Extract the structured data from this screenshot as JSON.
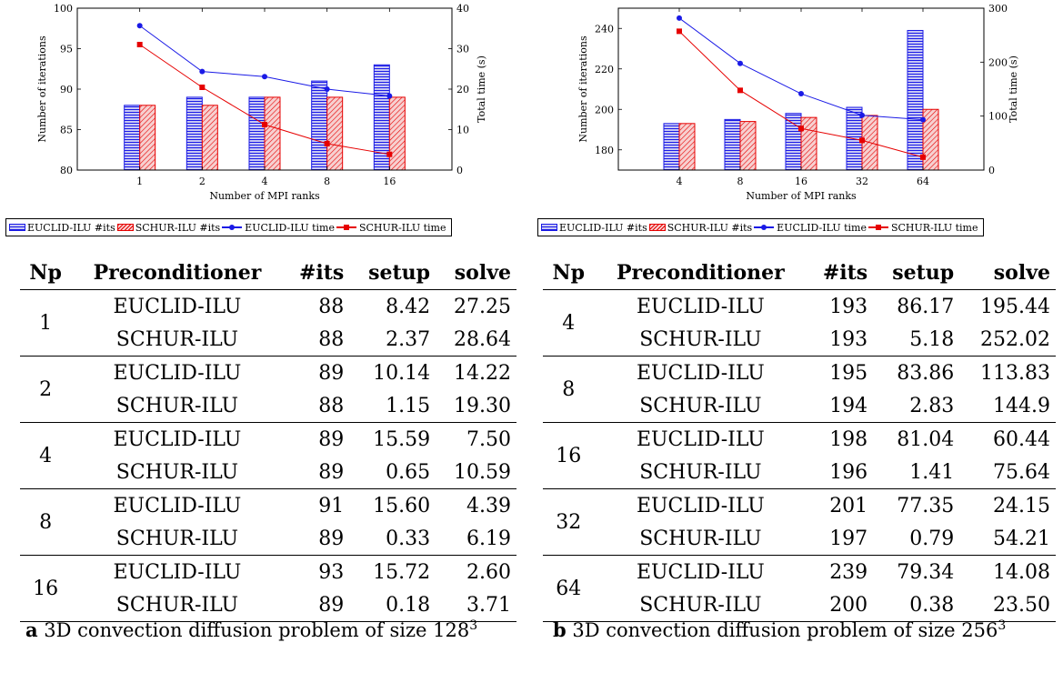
{
  "panels": [
    {
      "id": "a",
      "legend": [
        "EUCLID-ILU #its",
        "SCHUR-ILU #its",
        "EUCLID-ILU time",
        "SCHUR-ILU time"
      ],
      "caption": {
        "label": "a",
        "text": "3D convection diffusion problem of size 128",
        "exponent": "3"
      },
      "table": {
        "headers": [
          "Np",
          "Preconditioner",
          "#its",
          "setup",
          "solve"
        ],
        "groups": [
          {
            "np": "1",
            "rows": [
              [
                "EUCLID-ILU",
                "88",
                "8.42",
                "27.25"
              ],
              [
                "SCHUR-ILU",
                "88",
                "2.37",
                "28.64"
              ]
            ]
          },
          {
            "np": "2",
            "rows": [
              [
                "EUCLID-ILU",
                "89",
                "10.14",
                "14.22"
              ],
              [
                "SCHUR-ILU",
                "88",
                "1.15",
                "19.30"
              ]
            ]
          },
          {
            "np": "4",
            "rows": [
              [
                "EUCLID-ILU",
                "89",
                "15.59",
                "7.50"
              ],
              [
                "SCHUR-ILU",
                "89",
                "0.65",
                "10.59"
              ]
            ]
          },
          {
            "np": "8",
            "rows": [
              [
                "EUCLID-ILU",
                "91",
                "15.60",
                "4.39"
              ],
              [
                "SCHUR-ILU",
                "89",
                "0.33",
                "6.19"
              ]
            ]
          },
          {
            "np": "16",
            "rows": [
              [
                "EUCLID-ILU",
                "93",
                "15.72",
                "2.60"
              ],
              [
                "SCHUR-ILU",
                "89",
                "0.18",
                "3.71"
              ]
            ]
          }
        ]
      }
    },
    {
      "id": "b",
      "legend": [
        "EUCLID-ILU #its",
        "SCHUR-ILU #its",
        "EUCLID-ILU time",
        "SCHUR-ILU time"
      ],
      "caption": {
        "label": "b",
        "text": "3D convection diffusion problem of size 256",
        "exponent": "3"
      },
      "table": {
        "headers": [
          "Np",
          "Preconditioner",
          "#its",
          "setup",
          "solve"
        ],
        "groups": [
          {
            "np": "4",
            "rows": [
              [
                "EUCLID-ILU",
                "193",
                "86.17",
                "195.44"
              ],
              [
                "SCHUR-ILU",
                "193",
                "5.18",
                "252.02"
              ]
            ]
          },
          {
            "np": "8",
            "rows": [
              [
                "EUCLID-ILU",
                "195",
                "83.86",
                "113.83"
              ],
              [
                "SCHUR-ILU",
                "194",
                "2.83",
                "144.9"
              ]
            ]
          },
          {
            "np": "16",
            "rows": [
              [
                "EUCLID-ILU",
                "198",
                "81.04",
                "60.44"
              ],
              [
                "SCHUR-ILU",
                "196",
                "1.41",
                "75.64"
              ]
            ]
          },
          {
            "np": "32",
            "rows": [
              [
                "EUCLID-ILU",
                "201",
                "77.35",
                "24.15"
              ],
              [
                "SCHUR-ILU",
                "197",
                "0.79",
                "54.21"
              ]
            ]
          },
          {
            "np": "64",
            "rows": [
              [
                "EUCLID-ILU",
                "239",
                "79.34",
                "14.08"
              ],
              [
                "SCHUR-ILU",
                "200",
                "0.38",
                "23.50"
              ]
            ]
          }
        ]
      }
    }
  ],
  "colors": {
    "euclid": "#1a1ae6",
    "schur": "#e60000"
  },
  "chart_data": [
    {
      "type": "bar",
      "categories": [
        "1",
        "2",
        "4",
        "8",
        "16"
      ],
      "xlabel": "Number of MPI ranks",
      "ylabel": "Number of iterations",
      "y2label": "Total time (s)",
      "ylim": [
        80,
        100
      ],
      "yticks": [
        80,
        85,
        90,
        95,
        100
      ],
      "y2lim": [
        0,
        40
      ],
      "y2ticks": [
        0,
        10,
        20,
        30,
        40
      ],
      "grid": false,
      "legend_position": "below",
      "series": [
        {
          "name": "EUCLID-ILU #its",
          "kind": "bar",
          "axis": "left",
          "values": [
            88,
            89,
            89,
            91,
            93
          ]
        },
        {
          "name": "SCHUR-ILU #its",
          "kind": "bar",
          "axis": "left",
          "values": [
            88,
            88,
            89,
            89,
            89
          ]
        },
        {
          "name": "EUCLID-ILU time",
          "kind": "line",
          "axis": "right",
          "values": [
            35.67,
            24.36,
            23.09,
            19.99,
            18.32
          ]
        },
        {
          "name": "SCHUR-ILU time",
          "kind": "line",
          "axis": "right",
          "values": [
            31.01,
            20.45,
            11.24,
            6.52,
            3.89
          ]
        }
      ]
    },
    {
      "type": "bar",
      "categories": [
        "4",
        "8",
        "16",
        "32",
        "64"
      ],
      "xlabel": "Number of MPI ranks",
      "ylabel": "Number of iterations",
      "y2label": "Total time (s)",
      "ylim": [
        170,
        250
      ],
      "yticks": [
        180,
        200,
        220,
        240
      ],
      "y2lim": [
        0,
        300
      ],
      "y2ticks": [
        0,
        100,
        200,
        300
      ],
      "grid": false,
      "legend_position": "below",
      "series": [
        {
          "name": "EUCLID-ILU #its",
          "kind": "bar",
          "axis": "left",
          "values": [
            193,
            195,
            198,
            201,
            239
          ]
        },
        {
          "name": "SCHUR-ILU #its",
          "kind": "bar",
          "axis": "left",
          "values": [
            193,
            194,
            196,
            197,
            200
          ]
        },
        {
          "name": "EUCLID-ILU time",
          "kind": "line",
          "axis": "right",
          "values": [
            281.61,
            197.69,
            141.48,
            101.5,
            93.42
          ]
        },
        {
          "name": "SCHUR-ILU time",
          "kind": "line",
          "axis": "right",
          "values": [
            257.2,
            147.73,
            77.05,
            55.0,
            23.88
          ]
        }
      ]
    }
  ]
}
